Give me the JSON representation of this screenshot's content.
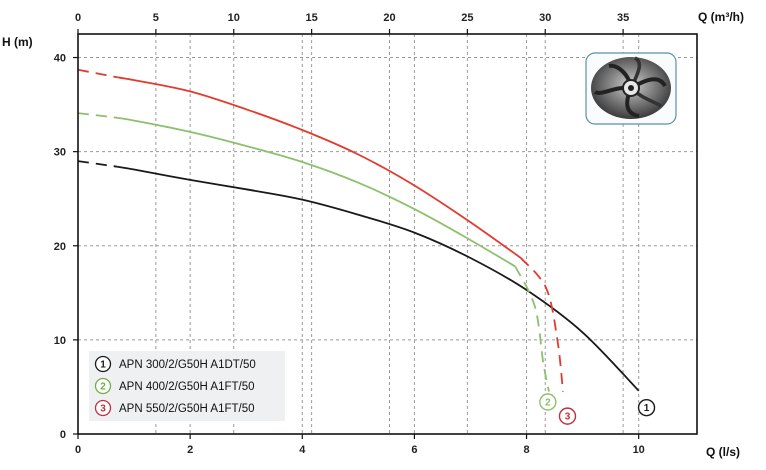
{
  "chart_data": {
    "type": "line",
    "xlabel": "Q (l/s)",
    "x2label": "Q (m³/h)",
    "ylabel": "H (m)",
    "xlim": [
      0,
      11.04
    ],
    "ylim": [
      0,
      42.5
    ],
    "x_ticks": [
      "0",
      "2",
      "4",
      "6",
      "8",
      "10"
    ],
    "x2_ticks": [
      "0",
      "5",
      "10",
      "15",
      "20",
      "25",
      "30",
      "35"
    ],
    "y_ticks": [
      "0",
      "10",
      "20",
      "30",
      "40"
    ],
    "grid": true,
    "series": [
      {
        "name": "APN 300/2/G50H A1DT/50",
        "marker": "1",
        "color": "#1a1a1a",
        "solid": [
          [
            0.7,
            28.4
          ],
          [
            1.0,
            28.1
          ],
          [
            2.0,
            27.0
          ],
          [
            3.0,
            26.0
          ],
          [
            4.0,
            24.9
          ],
          [
            5.0,
            23.3
          ],
          [
            6.0,
            21.4
          ],
          [
            7.0,
            18.7
          ],
          [
            8.0,
            15.3
          ],
          [
            9.0,
            10.8
          ],
          [
            10.0,
            4.6
          ]
        ],
        "dashed": [
          [
            0.0,
            29.0
          ],
          [
            0.7,
            28.4
          ]
        ]
      },
      {
        "name": "APN 400/2/G50H A1FT/50",
        "marker": "2",
        "color": "#8cc06c",
        "solid": [
          [
            0.7,
            33.6
          ],
          [
            1.0,
            33.3
          ],
          [
            2.0,
            32.1
          ],
          [
            3.0,
            30.6
          ],
          [
            4.0,
            28.9
          ],
          [
            5.0,
            26.7
          ],
          [
            6.0,
            23.9
          ],
          [
            7.0,
            20.6
          ],
          [
            7.8,
            17.8
          ]
        ],
        "dashed": [
          [
            0.0,
            34.1
          ],
          [
            0.7,
            33.6
          ],
          [
            7.8,
            17.8
          ],
          [
            8.15,
            13.5
          ],
          [
            8.3,
            7.5
          ],
          [
            8.4,
            4.5
          ]
        ]
      },
      {
        "name": "APN 550/2/G50H A1FT/50",
        "marker": "3",
        "color": "#e23b2e",
        "solid": [
          [
            0.7,
            37.9
          ],
          [
            1.0,
            37.6
          ],
          [
            2.0,
            36.4
          ],
          [
            3.0,
            34.5
          ],
          [
            4.0,
            32.3
          ],
          [
            5.0,
            29.7
          ],
          [
            6.0,
            26.4
          ],
          [
            7.0,
            22.5
          ],
          [
            7.9,
            18.7
          ]
        ],
        "dashed": [
          [
            0.0,
            38.7
          ],
          [
            0.7,
            37.9
          ],
          [
            7.9,
            18.7
          ],
          [
            8.35,
            15.5
          ],
          [
            8.55,
            10.0
          ],
          [
            8.65,
            4.5
          ]
        ]
      }
    ],
    "markers": [
      {
        "label": "1",
        "x": 10.14,
        "y": 2.8,
        "color": "#1a1a1a"
      },
      {
        "label": "2",
        "x": 8.38,
        "y": 3.4,
        "color": "#8cc06c"
      },
      {
        "label": "3",
        "x": 8.73,
        "y": 1.9,
        "color": "#c03040"
      }
    ]
  },
  "legend": [
    {
      "num": "1",
      "label": "APN 300/2/G50H A1DT/50",
      "color": "#1a1a1a"
    },
    {
      "num": "2",
      "label": "APN 400/2/G50H A1FT/50",
      "color": "#6fae3f"
    },
    {
      "num": "3",
      "label": "APN 550/2/G50H A1FT/50",
      "color": "#c03040"
    }
  ],
  "inset_image": {
    "alt": "impeller",
    "border_color": "#5a8fa8"
  }
}
